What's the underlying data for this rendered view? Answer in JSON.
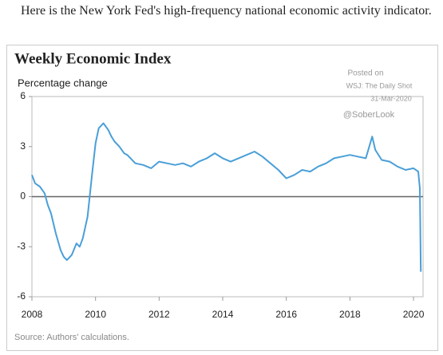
{
  "intro": "Here is the New York Fed's high-frequency national economic activity indicator.",
  "chart_data": {
    "type": "line",
    "title": "Weekly Economic Index",
    "y_label": "Percentage change",
    "annotations": [
      "Posted on",
      "WSJ: The Daily Shot",
      "31-Mar-2020",
      "@SoberLook"
    ],
    "source": "Source: Authors' calculations.",
    "x": [
      2008.0,
      2008.1,
      2008.25,
      2008.4,
      2008.5,
      2008.6,
      2008.75,
      2008.9,
      2009.0,
      2009.1,
      2009.25,
      2009.4,
      2009.5,
      2009.6,
      2009.75,
      2009.9,
      2010.0,
      2010.1,
      2010.25,
      2010.4,
      2010.5,
      2010.6,
      2010.75,
      2010.9,
      2011.0,
      2011.25,
      2011.5,
      2011.75,
      2012.0,
      2012.25,
      2012.5,
      2012.75,
      2013.0,
      2013.25,
      2013.5,
      2013.75,
      2014.0,
      2014.25,
      2014.5,
      2014.75,
      2015.0,
      2015.25,
      2015.5,
      2015.75,
      2016.0,
      2016.25,
      2016.5,
      2016.75,
      2017.0,
      2017.25,
      2017.5,
      2017.75,
      2018.0,
      2018.25,
      2018.5,
      2018.7,
      2018.8,
      2019.0,
      2019.25,
      2019.5,
      2019.75,
      2020.0,
      2020.15,
      2020.2,
      2020.23
    ],
    "series": [
      {
        "name": "Weekly Economic Index",
        "color": "#4a9fd8",
        "values": [
          1.3,
          0.8,
          0.6,
          0.2,
          -0.5,
          -1.0,
          -2.2,
          -3.2,
          -3.6,
          -3.8,
          -3.5,
          -2.8,
          -3.0,
          -2.5,
          -1.2,
          1.5,
          3.2,
          4.1,
          4.4,
          4.0,
          3.6,
          3.3,
          3.0,
          2.6,
          2.5,
          2.0,
          1.9,
          1.7,
          2.1,
          2.0,
          1.9,
          2.0,
          1.8,
          2.1,
          2.3,
          2.6,
          2.3,
          2.1,
          2.3,
          2.5,
          2.7,
          2.4,
          2.0,
          1.6,
          1.1,
          1.3,
          1.6,
          1.5,
          1.8,
          2.0,
          2.3,
          2.4,
          2.5,
          2.4,
          2.3,
          3.6,
          2.8,
          2.2,
          2.1,
          1.8,
          1.6,
          1.7,
          1.5,
          0.5,
          -4.5
        ]
      }
    ],
    "xlim": [
      2008,
      2020.3
    ],
    "xticks": [
      2008,
      2010,
      2012,
      2014,
      2016,
      2018,
      2020
    ],
    "ylim": [
      -6,
      6
    ],
    "yticks": [
      6,
      3,
      0,
      -3,
      -6
    ],
    "grid": false,
    "zero_line": true
  }
}
